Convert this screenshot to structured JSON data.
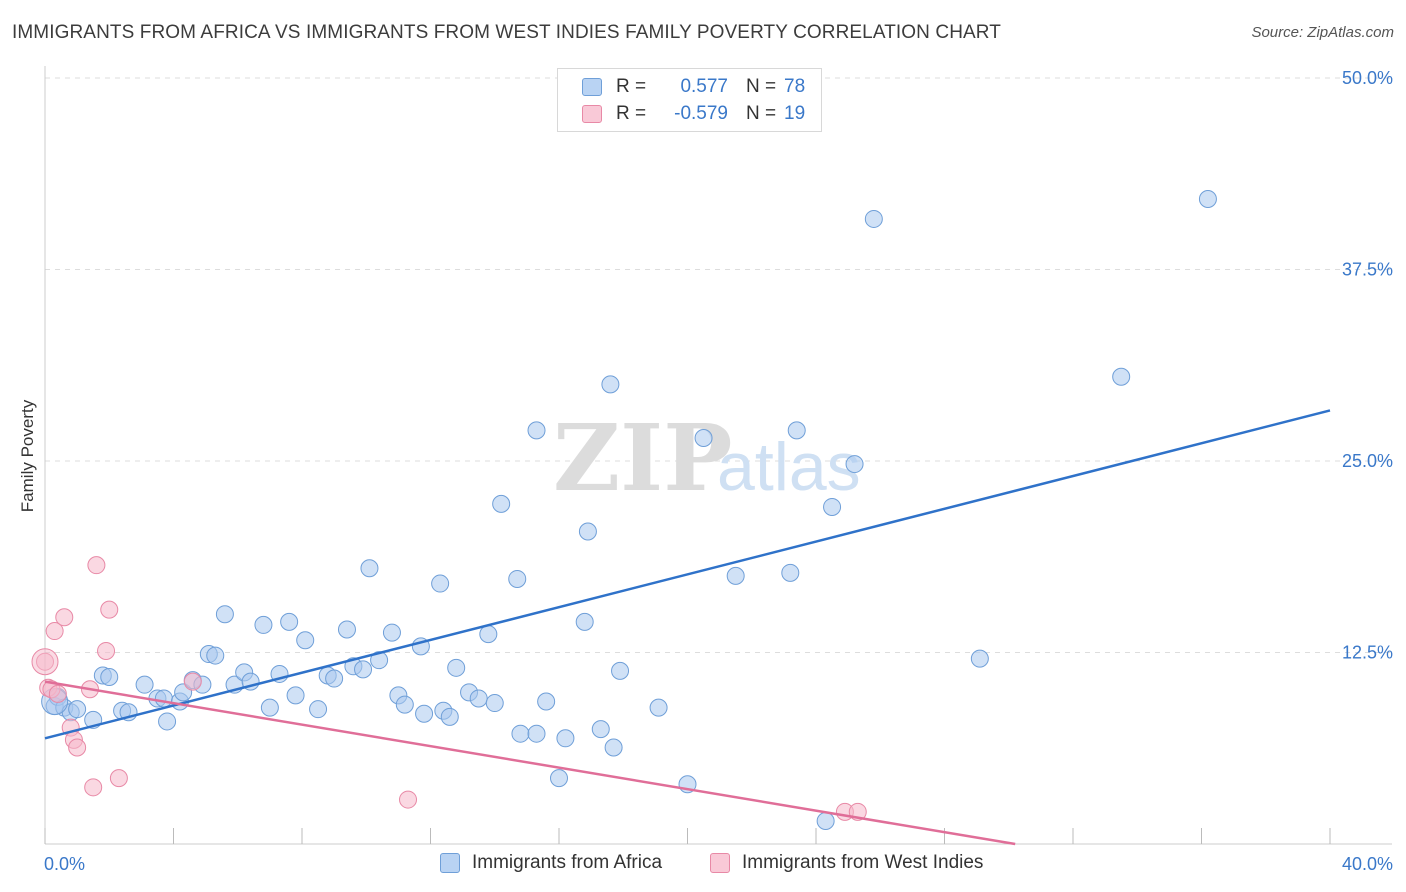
{
  "title": "IMMIGRANTS FROM AFRICA VS IMMIGRANTS FROM WEST INDIES FAMILY POVERTY CORRELATION CHART",
  "source": "Source: ZipAtlas.com",
  "watermark": {
    "zip": "ZIP",
    "atlas": "atlas"
  },
  "legend": {
    "africa": {
      "r_label": "R =",
      "r_value": "0.577",
      "n_label": "N =",
      "n_value": "78"
    },
    "west_indies": {
      "r_label": "R =",
      "r_value": "-0.579",
      "n_label": "N =",
      "n_value": "19"
    }
  },
  "colors": {
    "africa_fill": "#a9c8ef",
    "africa_stroke": "#6f9fd8",
    "africa_line": "#2f72c9",
    "west_indies_fill": "#f5b8ca",
    "west_indies_stroke": "#e889a6",
    "west_indies_line": "#e06e98",
    "tick_label": "#3a78c9",
    "grid": "#dddddd"
  },
  "chart_data": {
    "type": "scatter",
    "title": "IMMIGRANTS FROM AFRICA VS IMMIGRANTS FROM WEST INDIES FAMILY POVERTY CORRELATION CHART",
    "xlabel": "",
    "ylabel": "Family Poverty",
    "xlim": [
      0,
      40
    ],
    "ylim": [
      0,
      50
    ],
    "x_tick_labels": [
      "0.0%",
      "40.0%"
    ],
    "y_ticks": [
      12.5,
      25.0,
      37.5,
      50.0
    ],
    "y_tick_labels": [
      "12.5%",
      "25.0%",
      "37.5%",
      "50.0%"
    ],
    "grid": "horizontal dashed",
    "legend_position": "top-center",
    "series": [
      {
        "name": "Immigrants from Africa",
        "r": 0.577,
        "n": 78,
        "trend": {
          "x": [
            0,
            40
          ],
          "y": [
            6.9,
            28.3
          ]
        },
        "points": [
          [
            0.3,
            9.0
          ],
          [
            0.4,
            9.6
          ],
          [
            0.6,
            8.9
          ],
          [
            0.8,
            8.6
          ],
          [
            1.0,
            8.8
          ],
          [
            1.5,
            8.1
          ],
          [
            1.8,
            11.0
          ],
          [
            2.0,
            10.9
          ],
          [
            2.4,
            8.7
          ],
          [
            2.6,
            8.6
          ],
          [
            3.1,
            10.4
          ],
          [
            3.5,
            9.5
          ],
          [
            3.7,
            9.5
          ],
          [
            3.8,
            8.0
          ],
          [
            4.2,
            9.3
          ],
          [
            4.3,
            9.9
          ],
          [
            4.6,
            10.7
          ],
          [
            4.9,
            10.4
          ],
          [
            5.1,
            12.4
          ],
          [
            5.3,
            12.3
          ],
          [
            5.6,
            15.0
          ],
          [
            5.9,
            10.4
          ],
          [
            6.2,
            11.2
          ],
          [
            6.4,
            10.6
          ],
          [
            6.8,
            14.3
          ],
          [
            7.0,
            8.9
          ],
          [
            7.3,
            11.1
          ],
          [
            7.6,
            14.5
          ],
          [
            7.8,
            9.7
          ],
          [
            8.1,
            13.3
          ],
          [
            8.5,
            8.8
          ],
          [
            8.8,
            11.0
          ],
          [
            9.0,
            10.8
          ],
          [
            9.4,
            14.0
          ],
          [
            9.6,
            11.6
          ],
          [
            9.9,
            11.4
          ],
          [
            10.1,
            18.0
          ],
          [
            10.4,
            12.0
          ],
          [
            10.8,
            13.8
          ],
          [
            11.0,
            9.7
          ],
          [
            11.2,
            9.1
          ],
          [
            11.7,
            12.9
          ],
          [
            11.8,
            8.5
          ],
          [
            12.3,
            17.0
          ],
          [
            12.4,
            8.7
          ],
          [
            12.6,
            8.3
          ],
          [
            12.8,
            11.5
          ],
          [
            13.2,
            9.9
          ],
          [
            13.5,
            9.5
          ],
          [
            13.8,
            13.7
          ],
          [
            14.0,
            9.2
          ],
          [
            14.2,
            22.2
          ],
          [
            14.7,
            17.3
          ],
          [
            14.8,
            7.2
          ],
          [
            15.3,
            7.2
          ],
          [
            15.6,
            9.3
          ],
          [
            15.3,
            27.0
          ],
          [
            16.0,
            4.3
          ],
          [
            16.2,
            6.9
          ],
          [
            16.8,
            14.5
          ],
          [
            16.9,
            20.4
          ],
          [
            17.3,
            7.5
          ],
          [
            17.7,
            6.3
          ],
          [
            17.6,
            30.0
          ],
          [
            17.9,
            11.3
          ],
          [
            19.1,
            8.9
          ],
          [
            20.0,
            3.9
          ],
          [
            20.5,
            26.5
          ],
          [
            21.5,
            17.5
          ],
          [
            23.2,
            17.7
          ],
          [
            23.4,
            27.0
          ],
          [
            24.3,
            1.5
          ],
          [
            24.5,
            22.0
          ],
          [
            25.2,
            24.8
          ],
          [
            25.8,
            40.8
          ],
          [
            29.1,
            12.1
          ],
          [
            33.5,
            30.5
          ],
          [
            36.2,
            42.1
          ]
        ]
      },
      {
        "name": "Immigrants from West Indies",
        "r": -0.579,
        "n": 19,
        "trend": {
          "x": [
            0,
            30.2
          ],
          "y": [
            10.6,
            0
          ]
        },
        "points": [
          [
            0.0,
            11.9
          ],
          [
            0.1,
            10.2
          ],
          [
            0.3,
            13.9
          ],
          [
            0.6,
            14.8
          ],
          [
            0.8,
            7.6
          ],
          [
            0.9,
            6.8
          ],
          [
            1.0,
            6.3
          ],
          [
            1.4,
            10.1
          ],
          [
            1.5,
            3.7
          ],
          [
            1.6,
            18.2
          ],
          [
            1.9,
            12.6
          ],
          [
            2.0,
            15.3
          ],
          [
            2.3,
            4.3
          ],
          [
            4.6,
            10.6
          ],
          [
            11.3,
            2.9
          ],
          [
            24.9,
            2.1
          ],
          [
            25.3,
            2.1
          ],
          [
            0.2,
            10.1
          ],
          [
            0.4,
            9.8
          ]
        ]
      }
    ]
  }
}
